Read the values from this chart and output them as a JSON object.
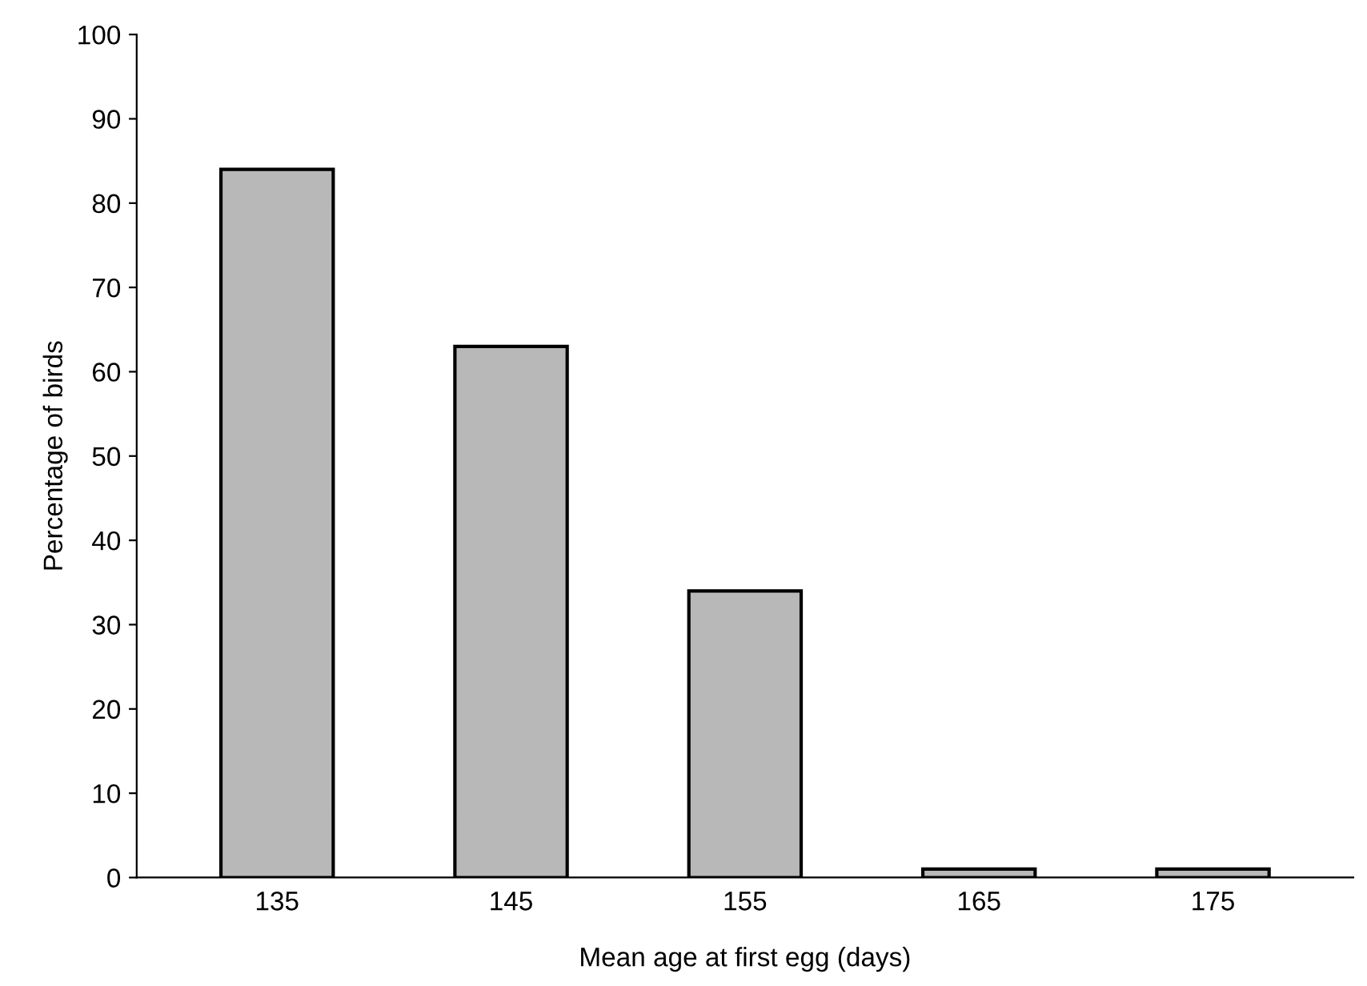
{
  "chart_data": {
    "type": "bar",
    "xlabel": "Mean age at first egg (days)",
    "ylabel": "Percentage of birds",
    "categories": [
      "135",
      "145",
      "155",
      "165",
      "175"
    ],
    "values": [
      84,
      63,
      34,
      1,
      1
    ],
    "color": "#b8b8b8",
    "ylim": [
      0,
      100
    ],
    "yticks": [
      0,
      10,
      20,
      30,
      40,
      50,
      60,
      70,
      80,
      90,
      100
    ],
    "grid": false
  }
}
